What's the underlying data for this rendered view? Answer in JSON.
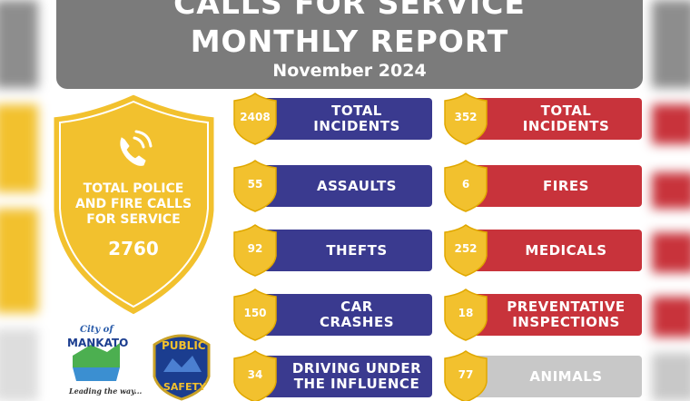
{
  "header": {
    "title_line1": "CALLS FOR SERVICE",
    "title_line2": "MONTHLY REPORT",
    "subtitle": "November 2024"
  },
  "total": {
    "label_lines": [
      "TOTAL POLICE",
      "AND FIRE CALLS",
      "FOR SERVICE"
    ],
    "value": "2760"
  },
  "police": [
    {
      "value": "2408",
      "label_lines": [
        "TOTAL",
        "INCIDENTS"
      ]
    },
    {
      "value": "55",
      "label_lines": [
        "ASSAULTS"
      ]
    },
    {
      "value": "92",
      "label_lines": [
        "THEFTS"
      ]
    },
    {
      "value": "150",
      "label_lines": [
        "CAR",
        "CRASHES"
      ]
    },
    {
      "value": "34",
      "label_lines": [
        "DRIVING UNDER",
        "THE INFLUENCE"
      ]
    }
  ],
  "fire": [
    {
      "value": "352",
      "label_lines": [
        "TOTAL",
        "INCIDENTS"
      ]
    },
    {
      "value": "6",
      "label_lines": [
        "FIRES"
      ]
    },
    {
      "value": "252",
      "label_lines": [
        "MEDICALS"
      ]
    },
    {
      "value": "18",
      "label_lines": [
        "PREVENTATIVE",
        "INSPECTIONS"
      ]
    },
    {
      "value": "77",
      "label_lines": [
        "ANIMALS"
      ]
    }
  ],
  "logos": {
    "city_prefix": "City of",
    "city_name": "MANKATO",
    "city_tagline": "Leading the way...",
    "badge_top": "PUBLIC",
    "badge_bottom": "SAFETY"
  }
}
